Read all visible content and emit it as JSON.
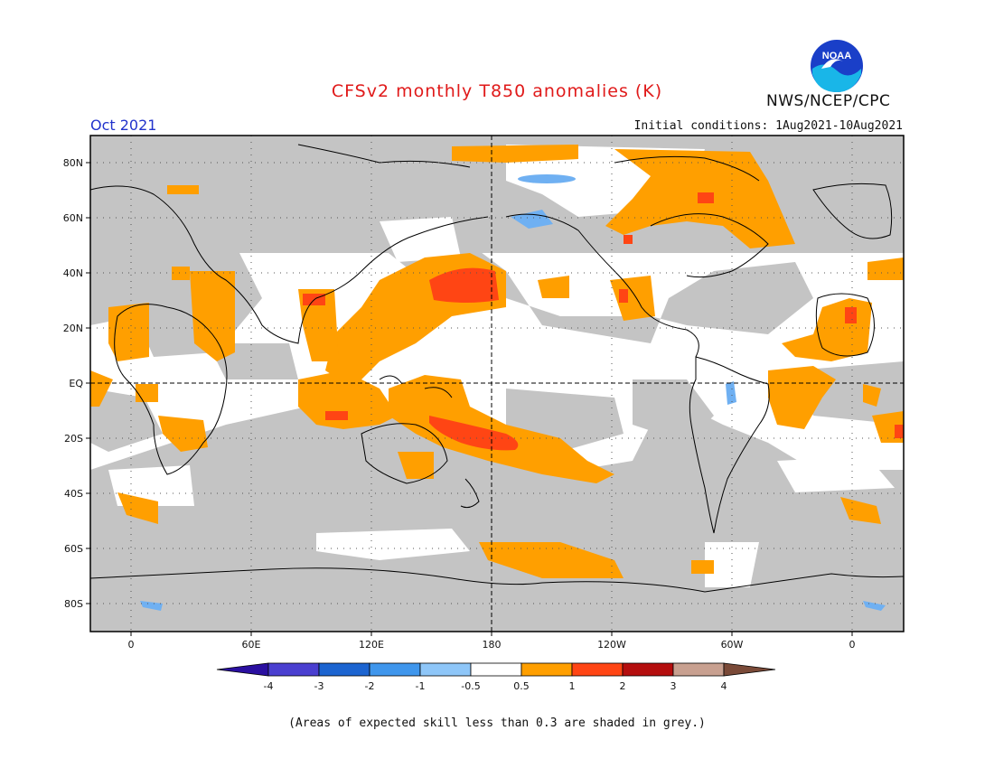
{
  "header": {
    "title": "CFSv2 monthly T850 anomalies (K)",
    "month": "Oct 2021",
    "initial_conditions": "Initial conditions: 1Aug2021-10Aug2021",
    "agency": "NWS/NCEP/CPC",
    "logo_text": "NOAA"
  },
  "map": {
    "lat_labels": [
      "80N",
      "60N",
      "40N",
      "20N",
      "EQ",
      "20S",
      "40S",
      "60S",
      "80S"
    ],
    "lon_labels": [
      "0",
      "60E",
      "120E",
      "180",
      "120W",
      "60W",
      "0"
    ]
  },
  "legend": {
    "labels": [
      "-4",
      "-3",
      "-2",
      "-1",
      "-0.5",
      "0.5",
      "1",
      "2",
      "3",
      "4"
    ],
    "colors": [
      "#2a0fa0",
      "#4a3fd0",
      "#1c64d0",
      "#3f96ec",
      "#8ec6f8",
      "#ffffff",
      "#ff9f00",
      "#ff4514",
      "#b40e0e",
      "#c8a090",
      "#7a4a38"
    ]
  },
  "footnote": "(Areas of expected skill less than 0.3 are shaded in grey.)",
  "colors": {
    "grey_skill": "#c4c4c4",
    "orange": "#ff9f00",
    "red": "#ff4514",
    "light_blue": "#6fb0f2",
    "title_red": "#e01a1a",
    "month_blue": "#2233cc"
  }
}
